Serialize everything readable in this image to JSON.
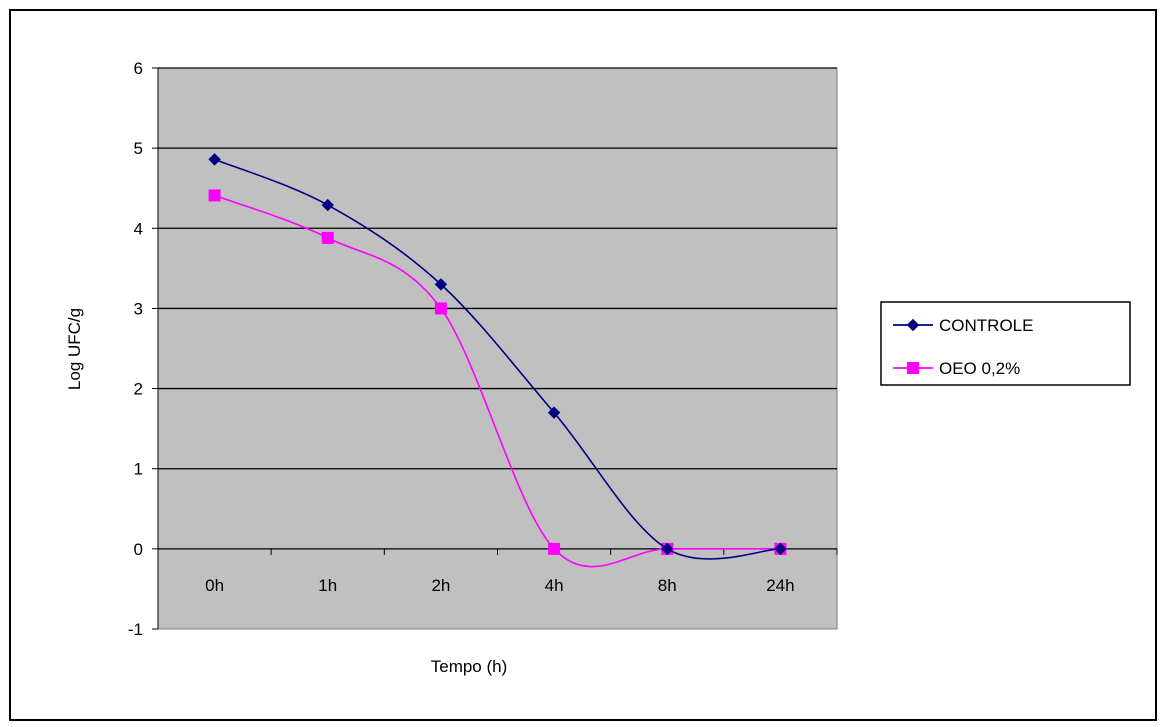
{
  "chart_data": {
    "type": "line",
    "categories": [
      "0h",
      "1h",
      "2h",
      "4h",
      "8h",
      "24h"
    ],
    "series": [
      {
        "name": "CONTROLE",
        "values": [
          4.86,
          4.29,
          3.3,
          1.7,
          0,
          0
        ],
        "color": "#000080",
        "marker": "diamond"
      },
      {
        "name": "OEO 0,2%",
        "values": [
          4.41,
          3.88,
          3.0,
          0,
          0,
          0
        ],
        "color": "#ff00ff",
        "marker": "square"
      }
    ],
    "title": "",
    "xlabel": "Tempo (h)",
    "ylabel": "Log UFC/g",
    "ylim": [
      -1,
      6
    ],
    "yticks": [
      -1,
      0,
      1,
      2,
      3,
      4,
      5,
      6
    ],
    "grid": true,
    "plot_background": "#c0c0c0",
    "legend_position": "right",
    "smooth": true
  }
}
